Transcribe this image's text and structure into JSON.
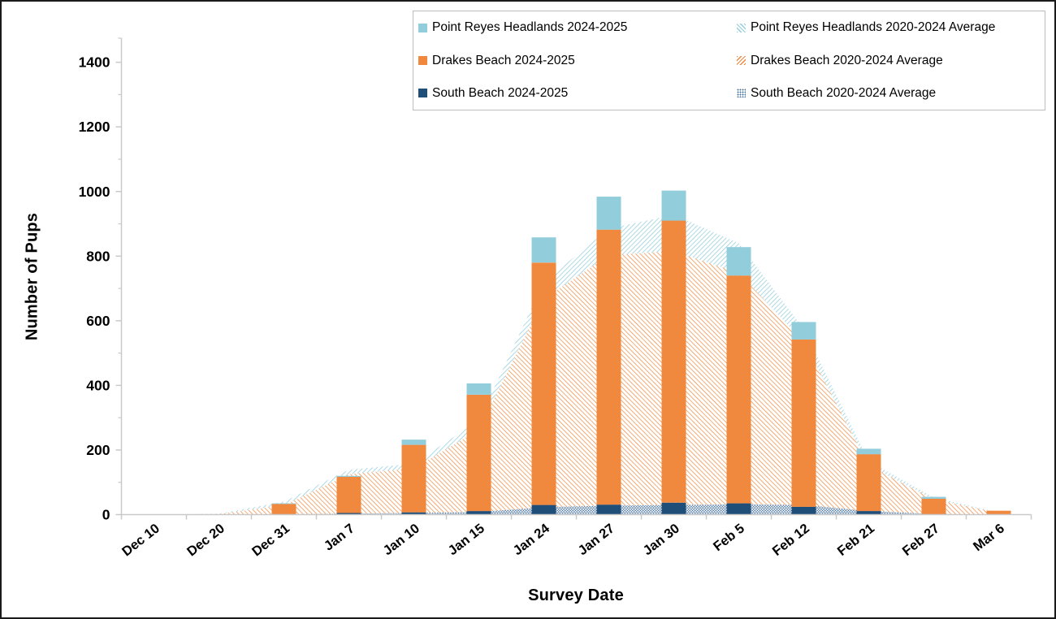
{
  "figure": {
    "background": "#FFFFFF",
    "border_color": "#1A1A1A"
  },
  "colors": {
    "prh": "#92CDDC",
    "drakes": "#F0883D",
    "south": "#1F4E79",
    "south_avg_dots": "#44719E",
    "axis_line": "#C9C9C9",
    "tick_label": "#000000",
    "legend_border": "#BDBDBD"
  },
  "axes": {
    "y_title": "Number of Pups",
    "x_title": "Survey Date",
    "y_ticks": [
      0,
      200,
      400,
      600,
      800,
      1000,
      1200,
      1400
    ],
    "y_minor_step": 100,
    "y_axis_top_value": 1475
  },
  "legend": {
    "items": [
      {
        "id": "prh-2024-2025",
        "label": "Point Reyes Headlands 2024-2025",
        "swatch": "solid",
        "color_key": "prh"
      },
      {
        "id": "drakes-2024-2025",
        "label": "Drakes Beach 2024-2025",
        "swatch": "solid",
        "color_key": "drakes"
      },
      {
        "id": "south-2024-2025",
        "label": "South Beach 2024-2025",
        "swatch": "solid",
        "color_key": "south"
      },
      {
        "id": "prh-avg",
        "label": "Point Reyes Headlands 2020-2024 Average",
        "swatch": "hatch-blue",
        "color_key": "prh"
      },
      {
        "id": "drakes-avg",
        "label": "Drakes Beach 2020-2024 Average",
        "swatch": "hatch-orange",
        "color_key": "drakes"
      },
      {
        "id": "south-avg",
        "label": "South Beach 2020-2024 Average",
        "swatch": "dots",
        "color_key": "south_avg_dots"
      }
    ]
  },
  "chart_data": {
    "type": "bar",
    "subtype": "stacked-columns-with-stacked-pattern-areas",
    "title": "",
    "xlabel": "Survey Date",
    "ylabel": "Number of Pups",
    "ylim": [
      0,
      1400
    ],
    "grid": false,
    "legend_position": "top",
    "categories": [
      "Dec 10",
      "Dec 20",
      "Dec 31",
      "Jan 7",
      "Jan 10",
      "Jan 15",
      "Jan 24",
      "Jan 27",
      "Jan 30",
      "Feb 5",
      "Feb 12",
      "Feb 21",
      "Feb 27",
      "Mar 6"
    ],
    "bar_series": [
      {
        "name": "South Beach 2024-2025",
        "color_key": "south",
        "values": [
          0,
          0,
          0,
          5,
          7,
          11,
          30,
          31,
          37,
          35,
          24,
          11,
          1,
          0
        ]
      },
      {
        "name": "Drakes Beach 2024-2025",
        "color_key": "drakes",
        "values": [
          0,
          0,
          33,
          112,
          209,
          360,
          750,
          851,
          873,
          705,
          518,
          176,
          48,
          12
        ]
      },
      {
        "name": "Point Reyes Headlands 2024-2025",
        "color_key": "prh",
        "values": [
          0,
          0,
          2,
          3,
          16,
          35,
          78,
          102,
          93,
          88,
          54,
          17,
          6,
          0
        ]
      }
    ],
    "bar_totals": [
      0,
      0,
      35,
      120,
      232,
      406,
      858,
      984,
      1003,
      828,
      596,
      204,
      55,
      12
    ],
    "area_series": [
      {
        "name": "South Beach 2020-2024 Average",
        "pattern": "dots",
        "color_key": "south_avg_dots",
        "values": [
          0,
          0,
          1,
          3,
          5,
          8,
          23,
          28,
          30,
          32,
          30,
          11,
          2,
          0
        ]
      },
      {
        "name": "Drakes Beach 2020-2024 Average",
        "pattern": "hatch-orange",
        "color_key": "drakes",
        "values": [
          0,
          2,
          28,
          122,
          138,
          255,
          645,
          775,
          785,
          716,
          505,
          140,
          45,
          6
        ]
      },
      {
        "name": "Point Reyes Headlands 2020-2024 Average",
        "pattern": "hatch-blue",
        "color_key": "prh",
        "values": [
          0,
          1,
          11,
          14,
          15,
          29,
          52,
          82,
          113,
          92,
          40,
          15,
          6,
          1
        ]
      }
    ],
    "area_totals": [
      0,
      3,
      40,
      139,
      158,
      292,
      720,
      885,
      928,
      840,
      575,
      166,
      53,
      7
    ]
  }
}
